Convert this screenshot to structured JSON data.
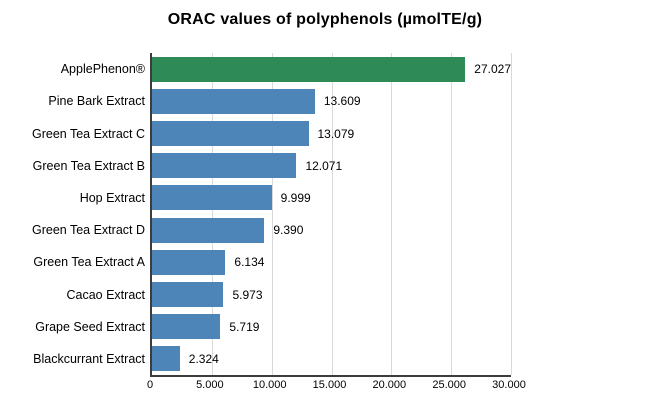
{
  "title": "ORAC values of polyphenols (µmolTE/g)",
  "colors": {
    "highlight_bar": "#2e8b57",
    "default_bar": "#4d85b8",
    "gridline": "#d9d9d9",
    "axis": "#3c3c3c",
    "background": "#ffffff",
    "text": "#000000"
  },
  "chart_data": {
    "type": "bar",
    "orientation": "horizontal",
    "title": "ORAC values of polyphenols (µmolTE/g)",
    "categories": [
      "ApplePhenon®",
      "Pine Bark Extract",
      "Green Tea Extract C",
      "Green Tea Extract B",
      "Hop Extract",
      "Green Tea Extract D",
      "Green Tea Extract A",
      "Cacao Extract",
      "Grape Seed Extract",
      "Blackcurrant Extract"
    ],
    "values": [
      27027,
      13609,
      13079,
      12071,
      9999,
      9390,
      6134,
      5973,
      5719,
      2324
    ],
    "value_labels": [
      "27.027",
      "13.609",
      "13.079",
      "12.071",
      "9.999",
      "9.390",
      "6.134",
      "5.973",
      "5.719",
      "2.324"
    ],
    "bar_colors": [
      "#2e8b57",
      "#4d85b8",
      "#4d85b8",
      "#4d85b8",
      "#4d85b8",
      "#4d85b8",
      "#4d85b8",
      "#4d85b8",
      "#4d85b8",
      "#4d85b8"
    ],
    "xlabel": "",
    "ylabel": "",
    "xlim": [
      0,
      30000
    ],
    "x_ticks": [
      0,
      5000,
      10000,
      15000,
      20000,
      25000,
      30000
    ],
    "x_tick_labels": [
      "0",
      "5.000",
      "10.000",
      "15.000",
      "20.000",
      "25.000",
      "30.000"
    ],
    "grid": "vertical",
    "legend": "none"
  }
}
